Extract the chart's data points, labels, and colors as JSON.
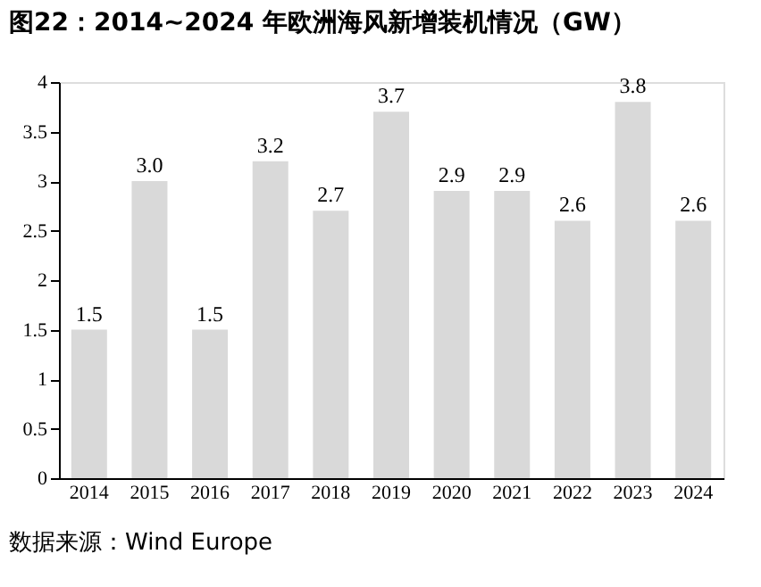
{
  "chart_data": {
    "type": "bar",
    "title": "图22：2014~2024 年欧洲海风新增装机情况（GW）",
    "categories": [
      "2014",
      "2015",
      "2016",
      "2017",
      "2018",
      "2019",
      "2020",
      "2021",
      "2022",
      "2023",
      "2024"
    ],
    "values": [
      1.5,
      3.0,
      1.5,
      3.2,
      2.7,
      3.7,
      2.9,
      2.9,
      2.6,
      3.8,
      2.6
    ],
    "value_labels": [
      "1.5",
      "3.0",
      "1.5",
      "3.2",
      "2.7",
      "3.7",
      "2.9",
      "2.9",
      "2.6",
      "3.8",
      "2.6"
    ],
    "color": "#d9d9d9",
    "ylim": [
      0,
      4
    ],
    "yticks": [
      0,
      0.5,
      1,
      1.5,
      2,
      2.5,
      3,
      3.5,
      4
    ],
    "grid": false,
    "annotations": [
      "数据来源：Wind Europe"
    ]
  }
}
